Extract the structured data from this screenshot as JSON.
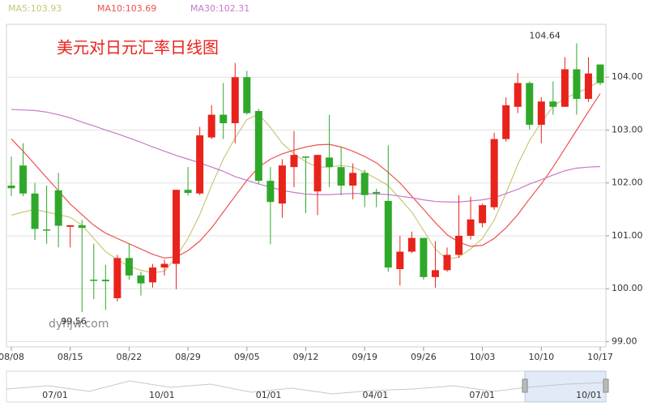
{
  "chart_data": {
    "type": "candlestick",
    "title": "美元对日元汇率日线图",
    "watermark": "dyhjw.com",
    "categories": [
      "08/08",
      null,
      null,
      null,
      null,
      "08/15",
      null,
      null,
      null,
      null,
      "08/22",
      null,
      null,
      null,
      null,
      "08/29",
      null,
      null,
      null,
      null,
      "09/05",
      null,
      null,
      null,
      null,
      "09/12",
      null,
      null,
      null,
      null,
      "09/19",
      null,
      null,
      null,
      null,
      "09/26",
      null,
      null,
      null,
      null,
      "10/03",
      null,
      null,
      null,
      null,
      "10/10",
      null,
      null,
      null,
      null,
      "10/17"
    ],
    "open": [
      101.95,
      102.33,
      101.8,
      101.12,
      101.86,
      101.17,
      101.2,
      100.17,
      100.17,
      99.82,
      100.58,
      100.25,
      100.12,
      100.4,
      100.47,
      101.87,
      101.8,
      102.86,
      103.29,
      103.13,
      104.0,
      103.36,
      102.04,
      101.61,
      102.3,
      102.5,
      101.84,
      102.48,
      102.3,
      101.95,
      102.19,
      101.83,
      101.66,
      100.37,
      100.7,
      100.96,
      100.22,
      100.35,
      100.64,
      101.0,
      101.24,
      101.54,
      102.83,
      103.44,
      103.89,
      103.1,
      103.54,
      103.44,
      104.15,
      103.59,
      104.24
    ],
    "high": [
      102.5,
      102.75,
      102.0,
      101.95,
      102.19,
      101.2,
      101.3,
      100.85,
      100.45,
      100.64,
      100.85,
      100.32,
      100.47,
      100.55,
      101.87,
      102.3,
      103.06,
      103.47,
      103.89,
      104.27,
      104.12,
      103.4,
      102.3,
      102.45,
      102.98,
      102.5,
      102.53,
      103.29,
      102.68,
      102.37,
      102.25,
      101.89,
      102.71,
      101.0,
      101.08,
      100.96,
      100.9,
      100.78,
      101.77,
      101.74,
      101.61,
      102.95,
      103.62,
      104.08,
      103.92,
      103.62,
      103.92,
      104.38,
      104.64,
      104.38,
      104.24
    ],
    "low": [
      101.75,
      101.75,
      100.92,
      100.85,
      100.78,
      100.78,
      99.56,
      99.8,
      99.6,
      99.76,
      100.17,
      99.87,
      100.02,
      100.25,
      99.99,
      101.76,
      101.77,
      102.83,
      102.83,
      102.75,
      103.29,
      101.99,
      100.84,
      101.34,
      101.92,
      101.43,
      101.39,
      101.92,
      101.77,
      101.69,
      101.54,
      101.54,
      100.32,
      100.06,
      100.67,
      100.17,
      100.02,
      100.32,
      100.58,
      100.93,
      101.16,
      101.49,
      102.78,
      103.32,
      103.01,
      102.75,
      103.29,
      103.44,
      103.29,
      103.53,
      103.85
    ],
    "close": [
      101.9,
      101.8,
      101.13,
      101.1,
      101.19,
      101.2,
      101.15,
      100.15,
      100.14,
      100.58,
      100.25,
      100.1,
      100.4,
      100.47,
      101.87,
      101.81,
      102.9,
      103.29,
      103.13,
      104.0,
      103.32,
      102.04,
      101.64,
      102.33,
      102.53,
      102.48,
      102.53,
      102.3,
      101.95,
      102.19,
      101.77,
      101.8,
      100.4,
      100.7,
      100.96,
      100.22,
      100.35,
      100.64,
      101.0,
      101.31,
      101.58,
      102.83,
      103.47,
      103.89,
      103.1,
      103.54,
      103.44,
      104.15,
      103.59,
      104.07,
      103.89
    ],
    "up_color": "#e8231b",
    "down_color": "#2fa82a",
    "series": [
      {
        "name": "MA5:103.93",
        "color": "#c9c77a",
        "values": [
          101.39,
          101.45,
          101.5,
          101.45,
          101.4,
          101.35,
          101.2,
          100.95,
          100.7,
          100.55,
          100.42,
          100.35,
          100.3,
          100.33,
          100.6,
          100.95,
          101.4,
          101.95,
          102.45,
          102.85,
          103.2,
          103.3,
          103.05,
          102.75,
          102.55,
          102.4,
          102.3,
          102.3,
          102.33,
          102.3,
          102.2,
          102.08,
          101.95,
          101.7,
          101.45,
          101.1,
          100.75,
          100.55,
          100.6,
          100.75,
          100.95,
          101.3,
          101.8,
          102.35,
          102.8,
          103.15,
          103.45,
          103.6,
          103.7,
          103.8,
          103.93
        ]
      },
      {
        "name": "MA10:103.69",
        "color": "#ee5050",
        "values": [
          102.83,
          102.6,
          102.35,
          102.1,
          101.85,
          101.6,
          101.4,
          101.2,
          101.05,
          100.95,
          100.85,
          100.75,
          100.65,
          100.58,
          100.6,
          100.72,
          100.9,
          101.15,
          101.45,
          101.75,
          102.05,
          102.3,
          102.45,
          102.55,
          102.62,
          102.68,
          102.72,
          102.73,
          102.68,
          102.6,
          102.5,
          102.38,
          102.2,
          102.0,
          101.75,
          101.5,
          101.25,
          101.02,
          100.88,
          100.8,
          100.82,
          100.95,
          101.15,
          101.4,
          101.7,
          101.98,
          102.3,
          102.65,
          103.0,
          103.35,
          103.69
        ]
      },
      {
        "name": "MA30:102.31",
        "color": "#c878cc",
        "values": [
          103.39,
          103.38,
          103.37,
          103.34,
          103.29,
          103.23,
          103.15,
          103.08,
          103.0,
          102.93,
          102.85,
          102.77,
          102.68,
          102.6,
          102.52,
          102.45,
          102.38,
          102.3,
          102.22,
          102.12,
          102.05,
          101.98,
          101.92,
          101.86,
          101.82,
          101.79,
          101.78,
          101.78,
          101.79,
          101.8,
          101.8,
          101.79,
          101.78,
          101.75,
          101.72,
          101.68,
          101.65,
          101.64,
          101.64,
          101.66,
          101.68,
          101.72,
          101.8,
          101.88,
          101.98,
          102.06,
          102.15,
          102.23,
          102.28,
          102.3,
          102.31
        ]
      }
    ],
    "ylim": [
      98.9,
      105.0
    ],
    "yticks": [
      {
        "value": 99,
        "label": "99.00"
      },
      {
        "value": 100,
        "label": "100.00"
      },
      {
        "value": 101,
        "label": "101.00"
      },
      {
        "value": 102,
        "label": "102.00"
      },
      {
        "value": 103,
        "label": "103.00"
      },
      {
        "value": 104,
        "label": "104.00"
      }
    ],
    "grid": true,
    "navigator_labels": [
      "07/01",
      "10/01",
      "01/01",
      "04/01",
      "07/01",
      "10/01"
    ]
  }
}
